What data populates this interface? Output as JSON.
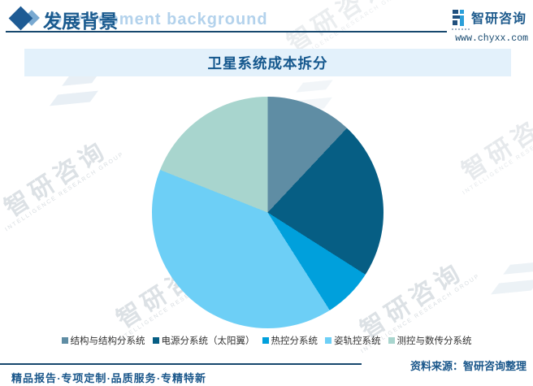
{
  "header": {
    "title": "发展背景",
    "brand": {
      "name": "智研咨询",
      "url": "www.chyxx.com"
    }
  },
  "watermark": {
    "header_en": "Development background",
    "brand_cn": "智研咨询",
    "brand_en": "INTELLIGENCE RESEARCH GROUP"
  },
  "chart_data": {
    "type": "pie",
    "title": "卫星系统成本拆分",
    "unit": "%",
    "values_estimated": true,
    "start_angle_deg": 0,
    "direction": "clockwise",
    "legend_position": "bottom",
    "slices": [
      {
        "label": "结构与结构分系统",
        "value": 12,
        "color": "#5F8DA4"
      },
      {
        "label": "电源分系统（太阳翼）",
        "value": 22,
        "color": "#065E84"
      },
      {
        "label": "热控分系统",
        "value": 7,
        "color": "#00A0DC"
      },
      {
        "label": "姿轨控系统",
        "value": 40,
        "color": "#6DCFF6"
      },
      {
        "label": "测控与数传分系统",
        "value": 19,
        "color": "#A8D5CE"
      }
    ]
  },
  "theme": {
    "accent_blue": "#1A5A8E",
    "rule_navy": "#17486E",
    "banner_bg": "#E3F1FB",
    "logo_dark": "#20507E",
    "logo_light": "#2B9FD9"
  },
  "footer": {
    "tagline": "精品报告·专项定制·品质服务·专精特新",
    "source": "资料来源：智研咨询整理"
  }
}
